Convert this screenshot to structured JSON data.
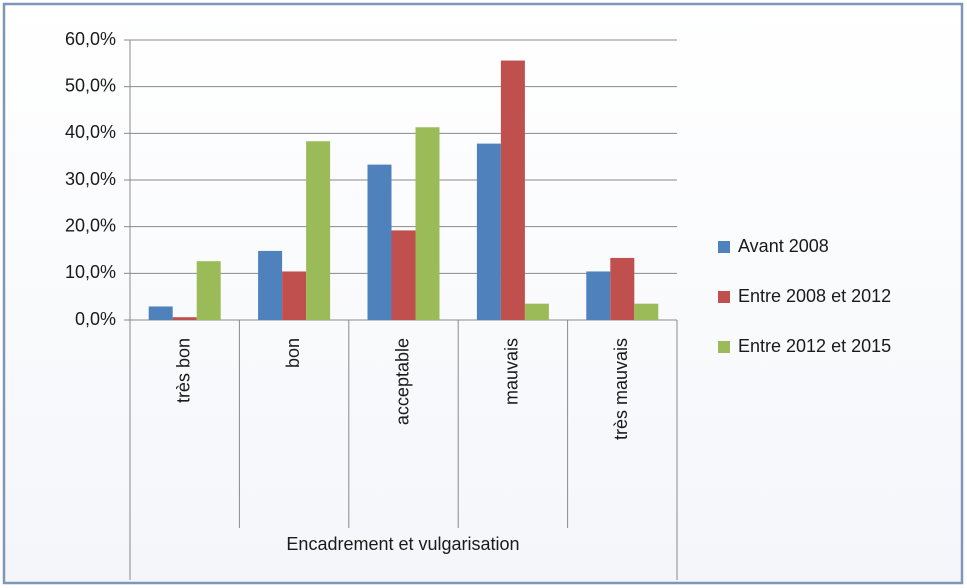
{
  "chart_data": {
    "type": "bar",
    "x_label": "Encadrement et vulgarisation",
    "categories": [
      "très bon",
      "bon",
      "acceptable",
      "mauvais",
      "très mauvais"
    ],
    "series": [
      {
        "name": "Avant 2008",
        "color": "#4f81bd",
        "values": [
          2.9,
          14.8,
          33.3,
          37.8,
          10.4
        ]
      },
      {
        "name": "Entre 2008 et 2012",
        "color": "#c0504d",
        "values": [
          0.6,
          10.4,
          19.2,
          55.6,
          13.3
        ]
      },
      {
        "name": "Entre 2012 et 2015",
        "color": "#9bbb59",
        "values": [
          12.6,
          38.3,
          41.3,
          3.5,
          3.5
        ]
      }
    ],
    "ylim": [
      0,
      60
    ],
    "yticks": [
      {
        "value": 0,
        "label": "0,0%"
      },
      {
        "value": 10,
        "label": "10,0%"
      },
      {
        "value": 20,
        "label": "20,0%"
      },
      {
        "value": 30,
        "label": "30,0%"
      },
      {
        "value": 40,
        "label": "40,0%"
      },
      {
        "value": 50,
        "label": "50,0%"
      },
      {
        "value": 60,
        "label": "60,0%"
      }
    ],
    "grid": true,
    "legend": "right"
  }
}
